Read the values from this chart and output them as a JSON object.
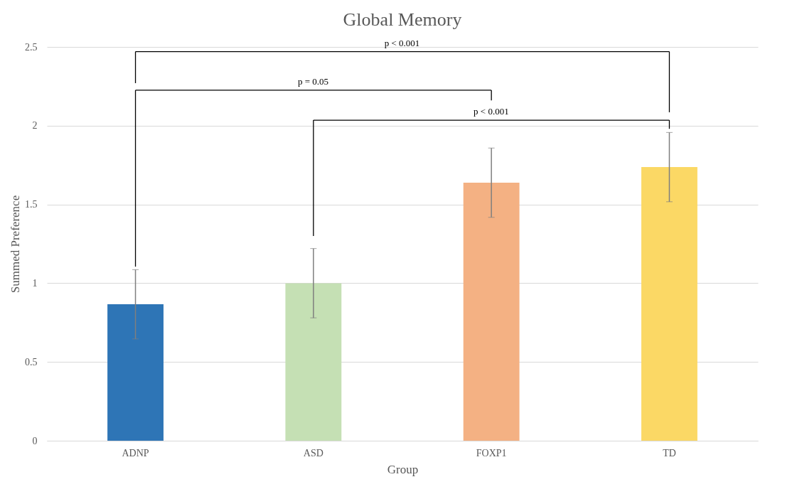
{
  "chart_data": {
    "type": "bar",
    "title": "Global Memory",
    "xlabel": "Group",
    "ylabel": "Summed Preference",
    "categories": [
      "ADNP",
      "ASD",
      "FOXP1",
      "TD"
    ],
    "values": [
      0.866,
      1.0,
      1.638,
      1.737
    ],
    "errors": [
      0.22,
      0.22,
      0.22,
      0.22
    ],
    "colors": [
      "#2e75b6",
      "#c5e0b4",
      "#f4b183",
      "#fbd865"
    ],
    "ylim": [
      0,
      2.5
    ],
    "yticks": [
      0,
      0.5,
      1,
      1.5,
      2,
      2.5
    ],
    "grid": "y",
    "annotations": [
      "p < 0.001",
      "p = 0.05",
      "p < 0.001"
    ]
  }
}
